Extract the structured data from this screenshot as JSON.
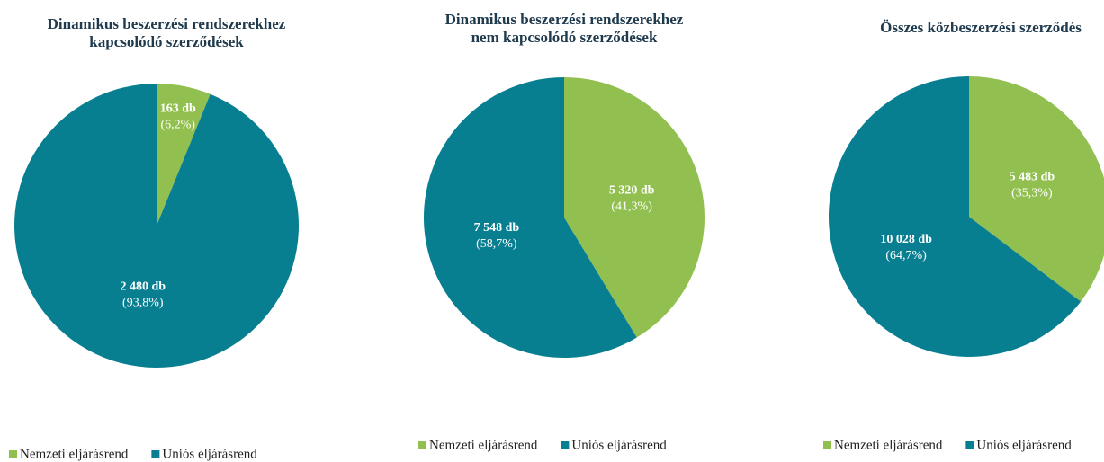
{
  "chart_data": [
    {
      "type": "pie",
      "title": "Dinamikus beszerzési rendszerekhez\nkapcsolódó  szerződések",
      "categories": [
        "Nemzeti eljárásrend",
        "Uniós eljárásrend"
      ],
      "values": [
        163,
        2480
      ],
      "value_labels": [
        "163 db",
        "2 480 db"
      ],
      "percent_labels": [
        "(6,2%)",
        "(93,8%)"
      ],
      "colors": [
        "#92c050",
        "#087f91"
      ]
    },
    {
      "type": "pie",
      "title": "Dinamikus beszerzési rendszerekhez\nnem kapcsolódó szerződések",
      "categories": [
        "Nemzeti eljárásrend",
        "Uniós eljárásrend"
      ],
      "values": [
        5320,
        7548
      ],
      "value_labels": [
        "5 320 db",
        "7 548 db"
      ],
      "percent_labels": [
        "(41,3%)",
        "(58,7%)"
      ],
      "colors": [
        "#92c050",
        "#087f91"
      ]
    },
    {
      "type": "pie",
      "title": "Összes közbeszerzési szerződés",
      "categories": [
        "Nemzeti eljárásrend",
        "Uniós eljárásrend"
      ],
      "values": [
        5483,
        10028
      ],
      "value_labels": [
        "5 483 db",
        "10 028 db"
      ],
      "percent_labels": [
        "(35,3%)",
        "(64,7%)"
      ],
      "colors": [
        "#92c050",
        "#087f91"
      ]
    }
  ]
}
